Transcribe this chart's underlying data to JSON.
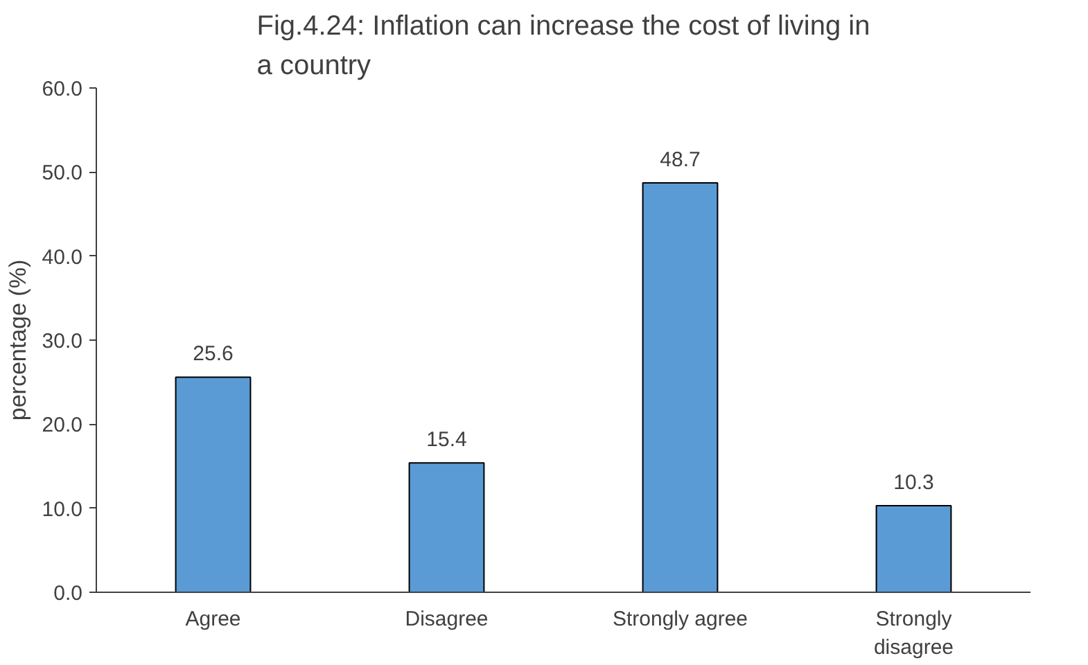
{
  "chart_data": {
    "type": "bar",
    "title": "Fig.4.24: Inflation can increase the cost of living in a country",
    "ylabel": "percentage (%)",
    "categories": [
      "Agree",
      "Disagree",
      "Strongly agree",
      "Strongly disagree"
    ],
    "values": [
      25.6,
      15.4,
      48.7,
      10.3
    ],
    "color": "#5b9bd5",
    "ylim": [
      0,
      60
    ],
    "yticks": [
      {
        "value": 0,
        "label": "0.0"
      },
      {
        "value": 10,
        "label": "10.0"
      },
      {
        "value": 20,
        "label": "20.0"
      },
      {
        "value": 30,
        "label": "30.0"
      },
      {
        "value": 40,
        "label": "40.0"
      },
      {
        "value": 50,
        "label": "50.0"
      },
      {
        "value": 60,
        "label": "60.0"
      }
    ],
    "data_labels": true,
    "grid": false
  }
}
